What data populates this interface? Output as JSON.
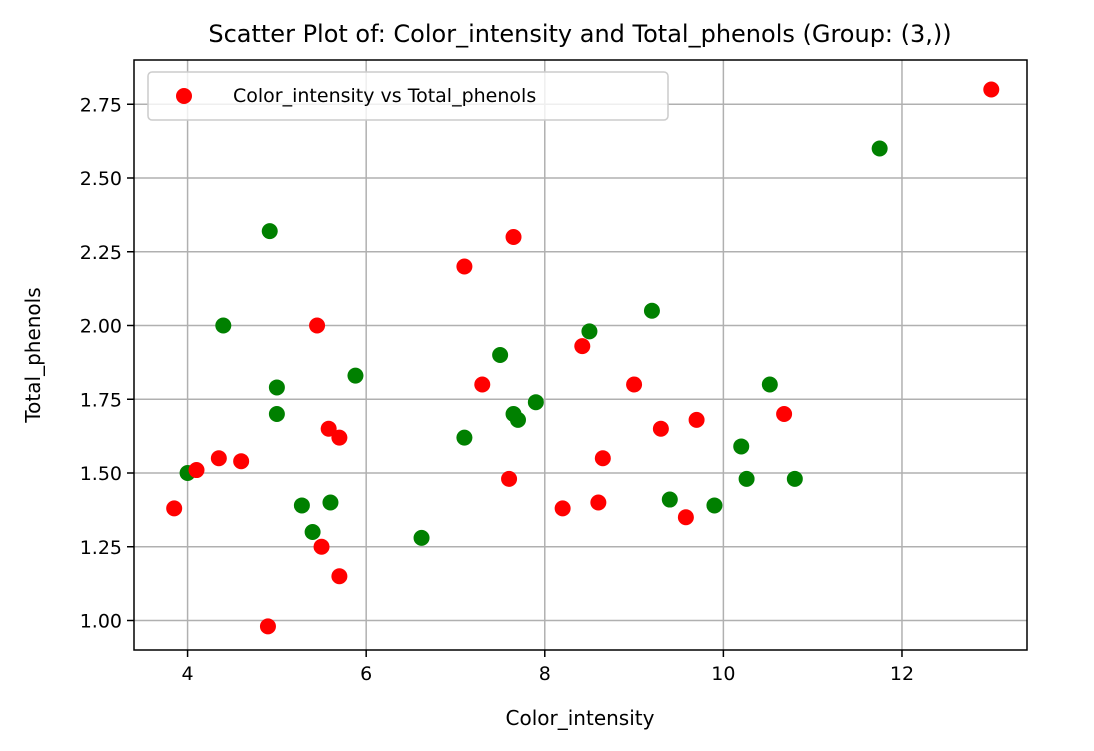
{
  "chart_data": {
    "type": "scatter",
    "title": "Scatter Plot of: Color_intensity and Total_phenols (Group: (3,))",
    "xlabel": "Color_intensity",
    "ylabel": "Total_phenols",
    "xlim": [
      3.4,
      13.4
    ],
    "ylim": [
      0.9,
      2.9
    ],
    "xticks": [
      4,
      6,
      8,
      10,
      12
    ],
    "xtick_labels": [
      "4",
      "6",
      "8",
      "10",
      "12"
    ],
    "yticks": [
      1.0,
      1.25,
      1.5,
      1.75,
      2.0,
      2.25,
      2.5,
      2.75
    ],
    "ytick_labels": [
      "1.00",
      "1.25",
      "1.50",
      "1.75",
      "2.00",
      "2.25",
      "2.50",
      "2.75"
    ],
    "grid": true,
    "legend": {
      "placement": "top-left",
      "entries": [
        "Color_intensity vs Total_phenols"
      ]
    },
    "colors": {
      "red": "#ff0000",
      "green": "#008000"
    },
    "points": [
      {
        "x": 3.85,
        "y": 1.38,
        "color": "red"
      },
      {
        "x": 4.0,
        "y": 1.5,
        "color": "green"
      },
      {
        "x": 4.1,
        "y": 1.51,
        "color": "red"
      },
      {
        "x": 4.35,
        "y": 1.55,
        "color": "red"
      },
      {
        "x": 4.4,
        "y": 2.0,
        "color": "green"
      },
      {
        "x": 4.6,
        "y": 1.54,
        "color": "red"
      },
      {
        "x": 4.9,
        "y": 0.98,
        "color": "red"
      },
      {
        "x": 4.92,
        "y": 2.32,
        "color": "green"
      },
      {
        "x": 5.0,
        "y": 1.79,
        "color": "green"
      },
      {
        "x": 5.0,
        "y": 1.7,
        "color": "green"
      },
      {
        "x": 5.28,
        "y": 1.39,
        "color": "green"
      },
      {
        "x": 5.4,
        "y": 1.3,
        "color": "green"
      },
      {
        "x": 5.45,
        "y": 2.0,
        "color": "red"
      },
      {
        "x": 5.5,
        "y": 1.25,
        "color": "red"
      },
      {
        "x": 5.58,
        "y": 1.65,
        "color": "red"
      },
      {
        "x": 5.6,
        "y": 1.4,
        "color": "green"
      },
      {
        "x": 5.7,
        "y": 1.62,
        "color": "red"
      },
      {
        "x": 5.7,
        "y": 1.15,
        "color": "red"
      },
      {
        "x": 5.88,
        "y": 1.83,
        "color": "green"
      },
      {
        "x": 6.62,
        "y": 1.28,
        "color": "green"
      },
      {
        "x": 7.1,
        "y": 2.2,
        "color": "red"
      },
      {
        "x": 7.1,
        "y": 1.62,
        "color": "green"
      },
      {
        "x": 7.3,
        "y": 1.8,
        "color": "red"
      },
      {
        "x": 7.5,
        "y": 1.9,
        "color": "green"
      },
      {
        "x": 7.6,
        "y": 1.48,
        "color": "red"
      },
      {
        "x": 7.65,
        "y": 2.3,
        "color": "red"
      },
      {
        "x": 7.65,
        "y": 1.7,
        "color": "green"
      },
      {
        "x": 7.7,
        "y": 1.68,
        "color": "green"
      },
      {
        "x": 7.9,
        "y": 1.74,
        "color": "green"
      },
      {
        "x": 8.2,
        "y": 1.38,
        "color": "red"
      },
      {
        "x": 8.42,
        "y": 1.93,
        "color": "red"
      },
      {
        "x": 8.5,
        "y": 1.98,
        "color": "green"
      },
      {
        "x": 8.6,
        "y": 1.4,
        "color": "red"
      },
      {
        "x": 8.65,
        "y": 1.55,
        "color": "red"
      },
      {
        "x": 9.0,
        "y": 1.8,
        "color": "red"
      },
      {
        "x": 9.2,
        "y": 2.05,
        "color": "green"
      },
      {
        "x": 9.3,
        "y": 1.65,
        "color": "red"
      },
      {
        "x": 9.4,
        "y": 1.41,
        "color": "green"
      },
      {
        "x": 9.58,
        "y": 1.35,
        "color": "red"
      },
      {
        "x": 9.7,
        "y": 1.68,
        "color": "red"
      },
      {
        "x": 9.9,
        "y": 1.39,
        "color": "green"
      },
      {
        "x": 10.2,
        "y": 1.59,
        "color": "green"
      },
      {
        "x": 10.26,
        "y": 1.48,
        "color": "green"
      },
      {
        "x": 10.52,
        "y": 1.8,
        "color": "green"
      },
      {
        "x": 10.68,
        "y": 1.7,
        "color": "red"
      },
      {
        "x": 10.8,
        "y": 1.48,
        "color": "green"
      },
      {
        "x": 11.75,
        "y": 2.6,
        "color": "green"
      },
      {
        "x": 13.0,
        "y": 2.8,
        "color": "red"
      }
    ]
  }
}
